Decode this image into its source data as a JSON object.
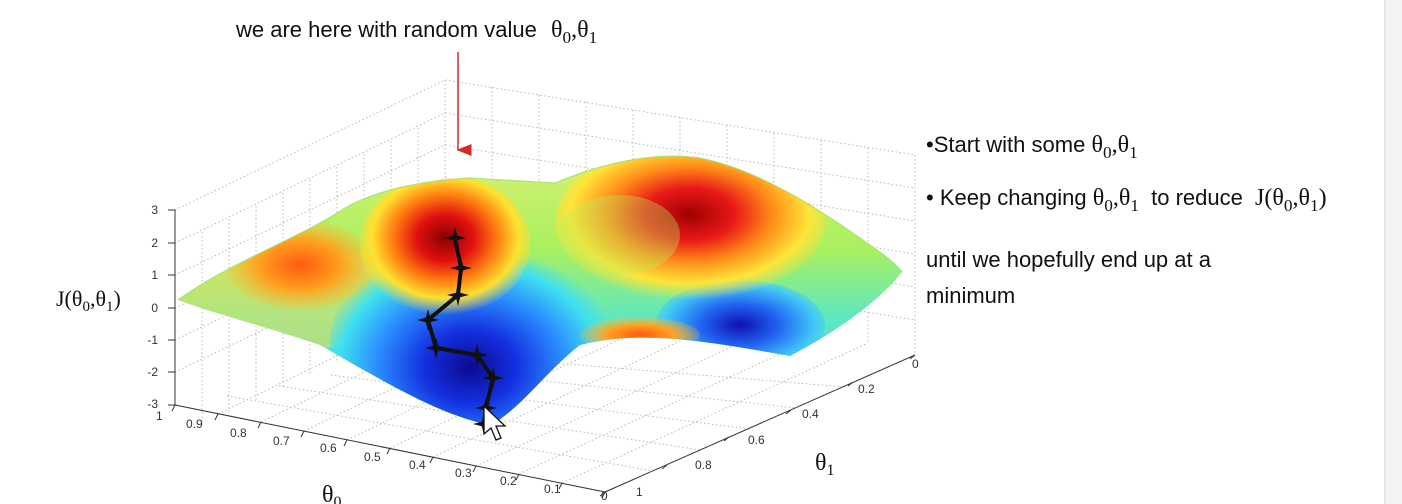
{
  "annotation": {
    "text": "we are here with random value",
    "theta_pair": {
      "t": "θ",
      "i0": "0",
      "sep": ",",
      "i1": "1"
    }
  },
  "bullets": {
    "b1_text": "•Start with some",
    "b2_text": "• Keep changing",
    "b2_mid": "to reduce",
    "b3_text": "until we hopefully end up at a minimum",
    "theta": {
      "t": "θ",
      "i0": "0",
      "sep": ",",
      "i1": "1"
    },
    "cost": {
      "J": "J(",
      "t": "θ",
      "i0": "0",
      "sep": ",",
      "i1": "1",
      "close": ")"
    }
  },
  "plot": {
    "z_axis_label": {
      "J": "J(",
      "t": "θ",
      "i0": "0",
      "sep": ",",
      "i1": "1",
      "close": ")"
    },
    "x_axis_label": {
      "t": "θ",
      "i": "0"
    },
    "y_axis_label": {
      "t": "θ",
      "i": "1"
    },
    "z_ticks": [
      "3",
      "2",
      "1",
      "0",
      "-1",
      "-2",
      "-3"
    ],
    "theta0_ticks": [
      "1",
      "0.9",
      "0.8",
      "0.7",
      "0.6",
      "0.5",
      "0.4",
      "0.3",
      "0.2",
      "0.1",
      "0"
    ],
    "theta1_ticks": [
      "0",
      "0.2",
      "0.4",
      "0.6",
      "0.8",
      "1"
    ],
    "path_steps": 9,
    "colors": {
      "arrow": "#d42a2a",
      "path": "#111111",
      "surface_colormap": "jet"
    }
  }
}
